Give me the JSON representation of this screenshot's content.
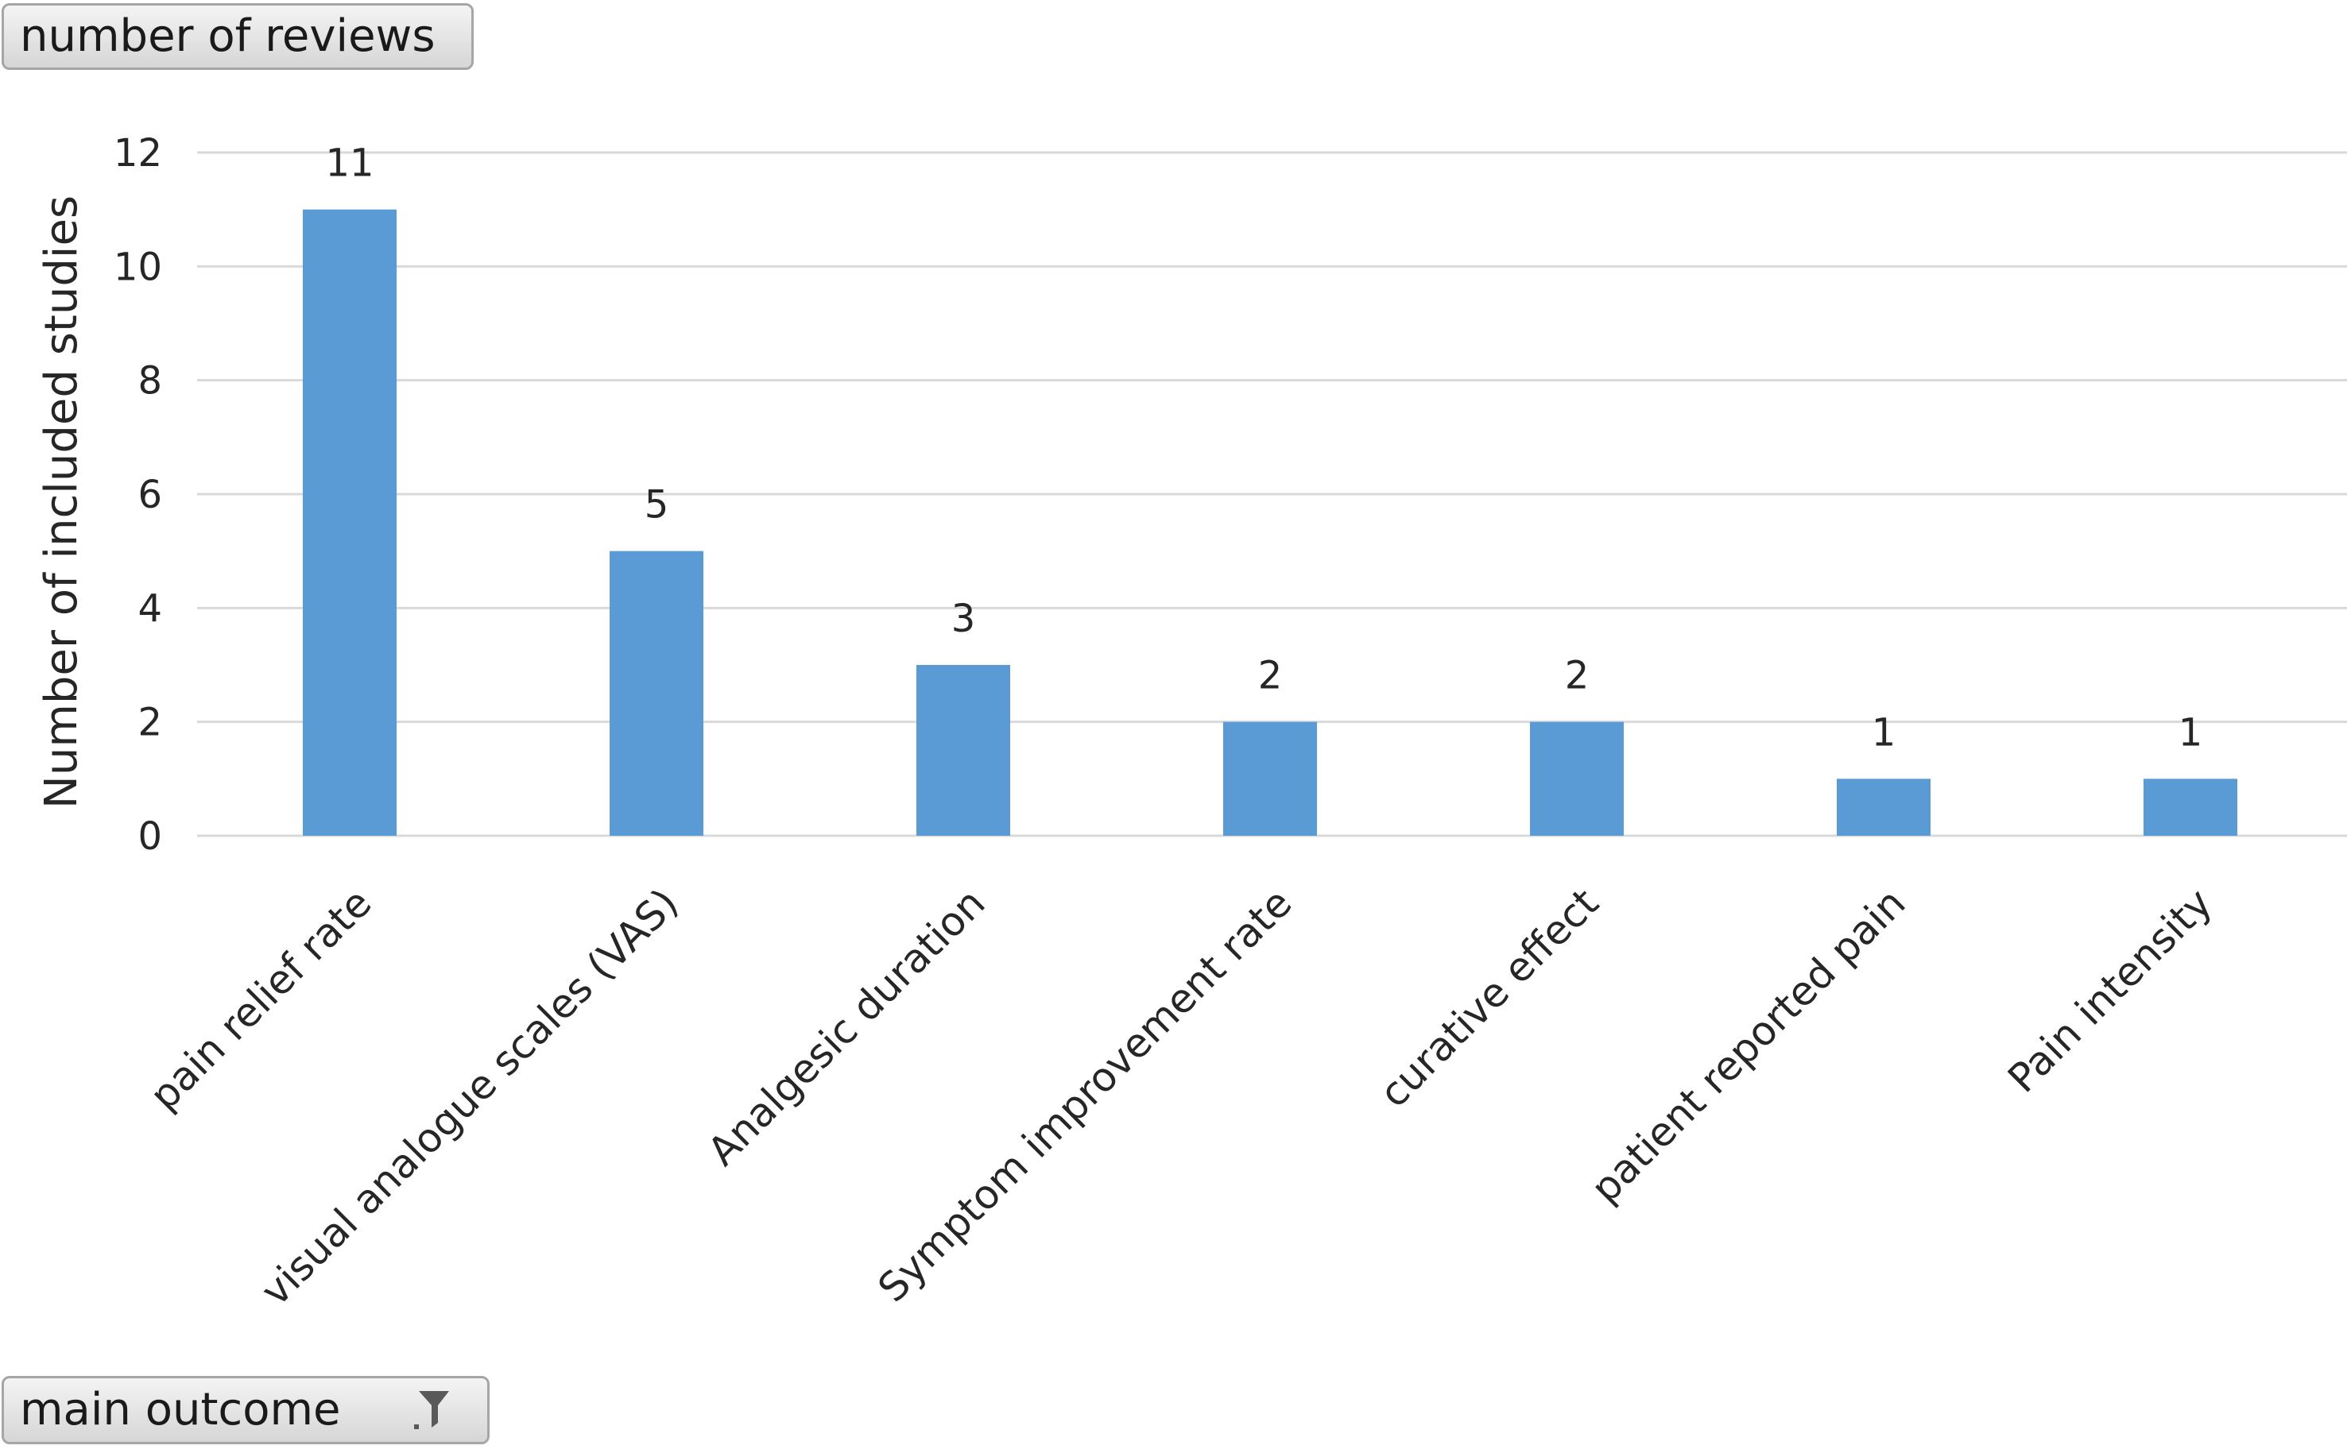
{
  "pivot": {
    "values_field": "number of reviews",
    "axis_field": "main outcome",
    "axis_filter_icon": "filter-icon"
  },
  "chart_data": {
    "type": "bar",
    "ylabel": "Number of included studies",
    "xlabel": "",
    "categories": [
      "pain relief rate",
      "visual analogue scales (VAS)",
      "Analgesic  duration",
      "Symptom improvement rate",
      "curative effect",
      "patient reported pain",
      "Pain intensity"
    ],
    "values": [
      11,
      5,
      3,
      2,
      2,
      1,
      1
    ],
    "data_labels": [
      "11",
      "5",
      "3",
      "2",
      "2",
      "1",
      "1"
    ],
    "ylim": [
      0,
      12
    ],
    "yticks": [
      0,
      2,
      4,
      6,
      8,
      10,
      12
    ],
    "grid": true,
    "legend": "none",
    "bar_color": "#5b9bd5",
    "grid_color": "#d9d9d9"
  }
}
